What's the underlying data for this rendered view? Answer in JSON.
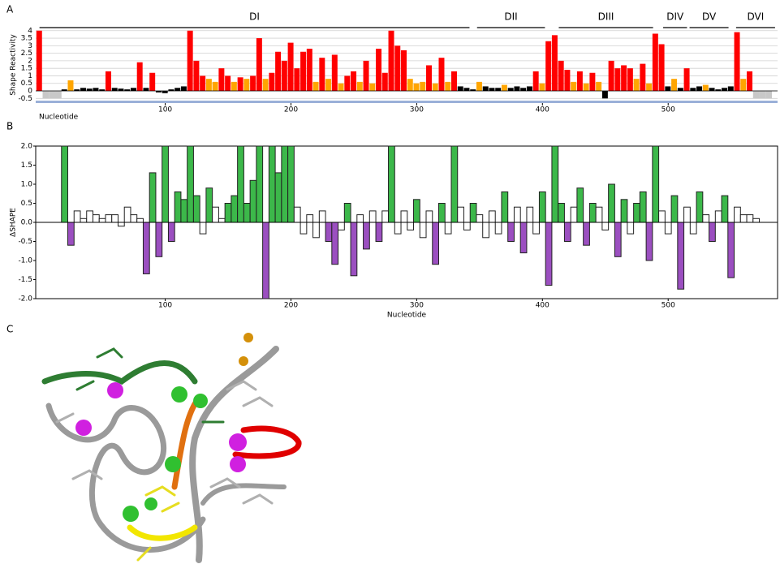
{
  "panels": [
    "A",
    "B",
    "C"
  ],
  "chart_data": [
    {
      "type": "bar",
      "ylabel": "Shape Reactivity",
      "xlabel": "Nucleotide",
      "colors": [
        "#000000",
        "#ffa500",
        "#ff0000"
      ],
      "x": [
        0,
        5,
        10,
        15,
        20,
        25,
        30,
        35,
        40,
        45,
        50,
        55,
        60,
        65,
        70,
        75,
        80,
        85,
        90,
        95,
        100,
        105,
        110,
        115,
        120,
        125,
        130,
        135,
        140,
        145,
        150,
        155,
        160,
        165,
        170,
        175,
        180,
        185,
        190,
        195,
        200,
        205,
        210,
        215,
        220,
        225,
        230,
        235,
        240,
        245,
        250,
        255,
        260,
        265,
        270,
        275,
        280,
        285,
        290,
        295,
        300,
        305,
        310,
        315,
        320,
        325,
        330,
        335,
        340,
        345,
        350,
        355,
        360,
        365,
        370,
        375,
        380,
        385,
        390,
        395,
        400,
        405,
        410,
        415,
        420,
        425,
        430,
        435,
        440,
        445,
        450,
        455,
        460,
        465,
        470,
        475,
        480,
        485,
        490,
        495,
        500,
        505,
        510,
        515,
        520,
        525,
        530,
        535,
        540,
        545,
        550,
        555,
        560,
        565,
        570,
        575,
        580
      ],
      "values": [
        4.0,
        null,
        null,
        null,
        0.1,
        0.7,
        0.1,
        0.2,
        0.15,
        0.2,
        0.1,
        1.3,
        0.2,
        0.15,
        0.1,
        0.2,
        1.9,
        0.2,
        1.2,
        -0.1,
        -0.15,
        0.1,
        0.2,
        0.3,
        4.0,
        2.0,
        1.0,
        0.8,
        0.6,
        1.5,
        1.0,
        0.6,
        0.9,
        0.8,
        1.0,
        3.5,
        0.8,
        1.2,
        2.6,
        2.0,
        3.2,
        1.5,
        2.6,
        2.8,
        0.6,
        2.2,
        0.8,
        2.4,
        0.5,
        1.0,
        1.3,
        0.6,
        2.0,
        0.5,
        2.8,
        1.2,
        4.0,
        3.0,
        2.7,
        0.8,
        0.5,
        0.6,
        1.7,
        0.5,
        2.2,
        0.6,
        1.3,
        0.3,
        0.2,
        0.1,
        0.6,
        0.3,
        0.2,
        0.2,
        0.4,
        0.2,
        0.3,
        0.2,
        0.3,
        1.3,
        0.5,
        3.3,
        3.7,
        2.0,
        1.4,
        0.6,
        1.3,
        0.5,
        1.2,
        0.6,
        -0.5,
        2.0,
        1.5,
        1.7,
        1.5,
        0.8,
        1.8,
        0.5,
        3.8,
        3.1,
        0.3,
        0.8,
        0.2,
        1.5,
        0.2,
        0.3,
        0.4,
        0.2,
        0.1,
        0.2,
        0.3,
        3.9,
        0.8,
        1.3,
        null,
        null,
        null
      ],
      "xlim": [
        -3,
        587
      ],
      "ylim": [
        -0.7,
        4.15
      ],
      "xticks": [
        100,
        200,
        300,
        400,
        500
      ],
      "yticks": [
        -0.5,
        0,
        0.5,
        1,
        1.5,
        2,
        2.5,
        3,
        3.5,
        4
      ],
      "grid": true,
      "annotations": [
        {
          "text": "DI",
          "start": 0,
          "end": 342
        },
        {
          "text": "DII",
          "start": 348,
          "end": 402
        },
        {
          "text": "DIII",
          "start": 413,
          "end": 488
        },
        {
          "text": "DIV",
          "start": 496,
          "end": 515
        },
        {
          "text": "DV",
          "start": 517,
          "end": 548
        },
        {
          "text": "DVI",
          "start": 554,
          "end": 585
        }
      ]
    },
    {
      "type": "step",
      "ylabel": "ΔSHAPE",
      "xlabel": "Nucleotide",
      "colors": [
        "#9b4fc0",
        "#ffffff",
        "#3cb84a"
      ],
      "x": [
        20,
        25,
        30,
        35,
        40,
        45,
        50,
        55,
        60,
        65,
        70,
        75,
        80,
        85,
        90,
        95,
        100,
        105,
        110,
        115,
        120,
        125,
        130,
        135,
        140,
        145,
        150,
        155,
        160,
        165,
        170,
        175,
        180,
        185,
        190,
        195,
        200,
        205,
        210,
        215,
        220,
        225,
        230,
        235,
        240,
        245,
        250,
        255,
        260,
        265,
        270,
        275,
        280,
        285,
        290,
        295,
        300,
        305,
        310,
        315,
        320,
        325,
        330,
        335,
        340,
        345,
        350,
        355,
        360,
        365,
        370,
        375,
        380,
        385,
        390,
        395,
        400,
        405,
        410,
        415,
        420,
        425,
        430,
        435,
        440,
        445,
        450,
        455,
        460,
        465,
        470,
        475,
        480,
        485,
        490,
        495,
        500,
        505,
        510,
        515,
        520,
        525,
        530,
        535,
        540,
        545,
        550,
        555,
        560,
        565,
        570
      ],
      "values": [
        2.0,
        -0.6,
        0.3,
        0.1,
        0.3,
        0.2,
        0.1,
        0.2,
        0.2,
        -0.1,
        0.4,
        0.2,
        0.1,
        -1.35,
        1.3,
        -0.9,
        2.0,
        -0.5,
        0.8,
        0.6,
        2.0,
        0.7,
        -0.3,
        0.9,
        0.4,
        0.1,
        0.5,
        0.7,
        2.0,
        0.5,
        1.1,
        2.0,
        -2.0,
        2.0,
        1.3,
        2.0,
        2.0,
        0.4,
        -0.3,
        0.2,
        -0.4,
        0.3,
        -0.5,
        -1.1,
        -0.2,
        0.5,
        -1.4,
        0.2,
        -0.7,
        0.3,
        -0.5,
        0.3,
        2.0,
        -0.3,
        0.3,
        -0.2,
        0.6,
        -0.4,
        0.3,
        -1.1,
        0.5,
        -0.3,
        2.0,
        0.4,
        -0.2,
        0.5,
        0.2,
        -0.4,
        0.3,
        -0.3,
        0.8,
        -0.5,
        0.4,
        -0.8,
        0.4,
        -0.3,
        0.8,
        -1.65,
        2.0,
        0.5,
        -0.5,
        0.4,
        0.9,
        -0.6,
        0.5,
        0.4,
        -0.2,
        1.0,
        -0.9,
        0.6,
        -0.3,
        0.5,
        0.8,
        -1.0,
        2.0,
        0.3,
        -0.3,
        0.7,
        -1.75,
        0.4,
        -0.3,
        0.8,
        0.2,
        -0.5,
        0.3,
        0.7,
        -1.45,
        0.4,
        0.2,
        0.2,
        0.1
      ],
      "xlim": [
        -3,
        587
      ],
      "ylim": [
        -2,
        2
      ],
      "xticks": [
        100,
        200,
        300,
        400,
        500
      ],
      "yticks": [
        {
          "value": -2,
          "label": "-2.0"
        },
        {
          "value": -1.5,
          "label": "-1.5"
        },
        {
          "value": -1,
          "label": "-1.0"
        },
        {
          "value": -0.5,
          "label": "-0.5"
        },
        {
          "value": 0,
          "label": "0.0"
        },
        {
          "value": 0.5,
          "label": "0.5"
        },
        {
          "value": 1,
          "label": "1.0"
        },
        {
          "value": 1.5,
          "label": "1.5"
        },
        {
          "value": 2,
          "label": "2.0"
        }
      ],
      "grid": false
    }
  ]
}
